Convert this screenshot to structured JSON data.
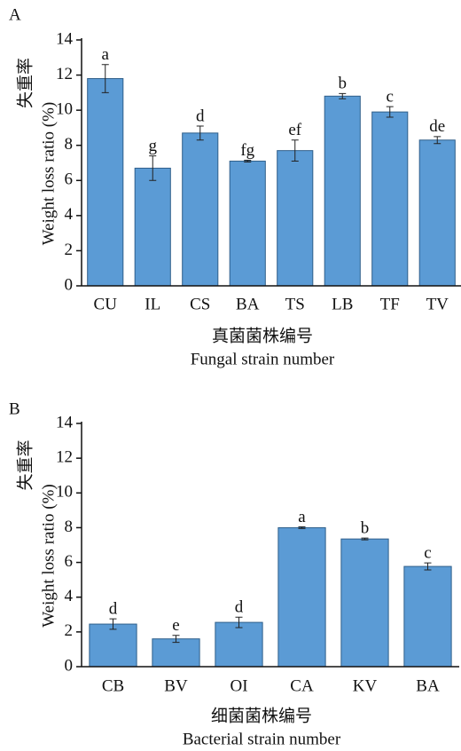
{
  "chart_data": [
    {
      "type": "bar",
      "panel": "A",
      "ylabel": [
        "失重率",
        "Weight loss ratio (%)"
      ],
      "xlabel": [
        "真菌菌株编号",
        "Fungal strain number"
      ],
      "categories": [
        "CU",
        "IL",
        "CS",
        "BA",
        "TS",
        "LB",
        "TF",
        "TV"
      ],
      "values": [
        11.8,
        6.7,
        8.7,
        7.1,
        7.7,
        10.8,
        9.9,
        8.3
      ],
      "errors": [
        0.8,
        0.7,
        0.4,
        0.05,
        0.6,
        0.15,
        0.3,
        0.2
      ],
      "letters": [
        "a",
        "g",
        "d",
        "fg",
        "ef",
        "b",
        "c",
        "de"
      ],
      "color": "#5b9bd5",
      "ylim": [
        0,
        14
      ],
      "yticks": [
        0,
        2,
        4,
        6,
        8,
        10,
        12,
        14
      ],
      "grid": false
    },
    {
      "type": "bar",
      "panel": "B",
      "ylabel": [
        "失重率",
        "Weight loss ratio (%)"
      ],
      "xlabel": [
        "细菌菌株编号",
        "Bacterial strain number"
      ],
      "categories": [
        "CB",
        "BV",
        "OI",
        "CA",
        "KV",
        "BA"
      ],
      "values": [
        2.45,
        1.6,
        2.55,
        8.0,
        7.35,
        5.77
      ],
      "errors": [
        0.3,
        0.2,
        0.3,
        0.05,
        0.05,
        0.2
      ],
      "letters": [
        "d",
        "e",
        "d",
        "a",
        "b",
        "c"
      ],
      "color": "#5b9bd5",
      "ylim": [
        0,
        14
      ],
      "yticks": [
        0,
        2,
        4,
        6,
        8,
        10,
        12,
        14
      ],
      "grid": false
    }
  ]
}
